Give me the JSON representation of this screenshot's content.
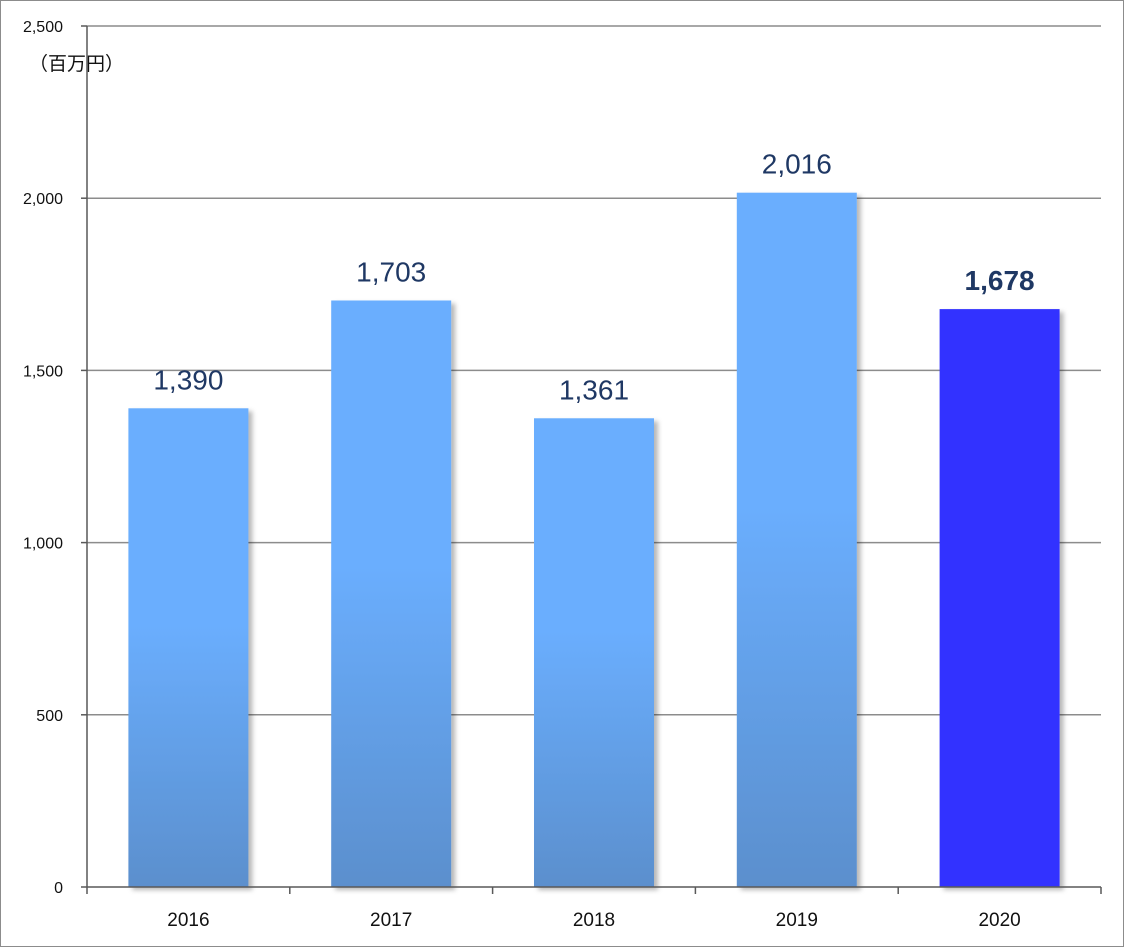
{
  "chart_data": {
    "type": "bar",
    "unit_label": "（百万円）",
    "categories": [
      "2016",
      "2017",
      "2018",
      "2019",
      "2020"
    ],
    "values": [
      1390,
      1703,
      1361,
      2016,
      1678
    ],
    "data_labels": [
      "1,390",
      "1,703",
      "1,361",
      "2,016",
      "1,678"
    ],
    "highlight_index": 4,
    "ylim": [
      0,
      2500
    ],
    "yticks": [
      0,
      500,
      1000,
      1500,
      2000,
      2500
    ],
    "ytick_labels": [
      "0",
      "500",
      "1,000",
      "1,500",
      "2,000",
      "2,500"
    ],
    "grid": true,
    "colors": {
      "bar_top": "#6aaefe",
      "bar_bottom": "#5b8fcd",
      "highlight": "#3333ff",
      "label": "#1f3864",
      "grid": "#8c8c8c",
      "axis": "#595959"
    }
  }
}
